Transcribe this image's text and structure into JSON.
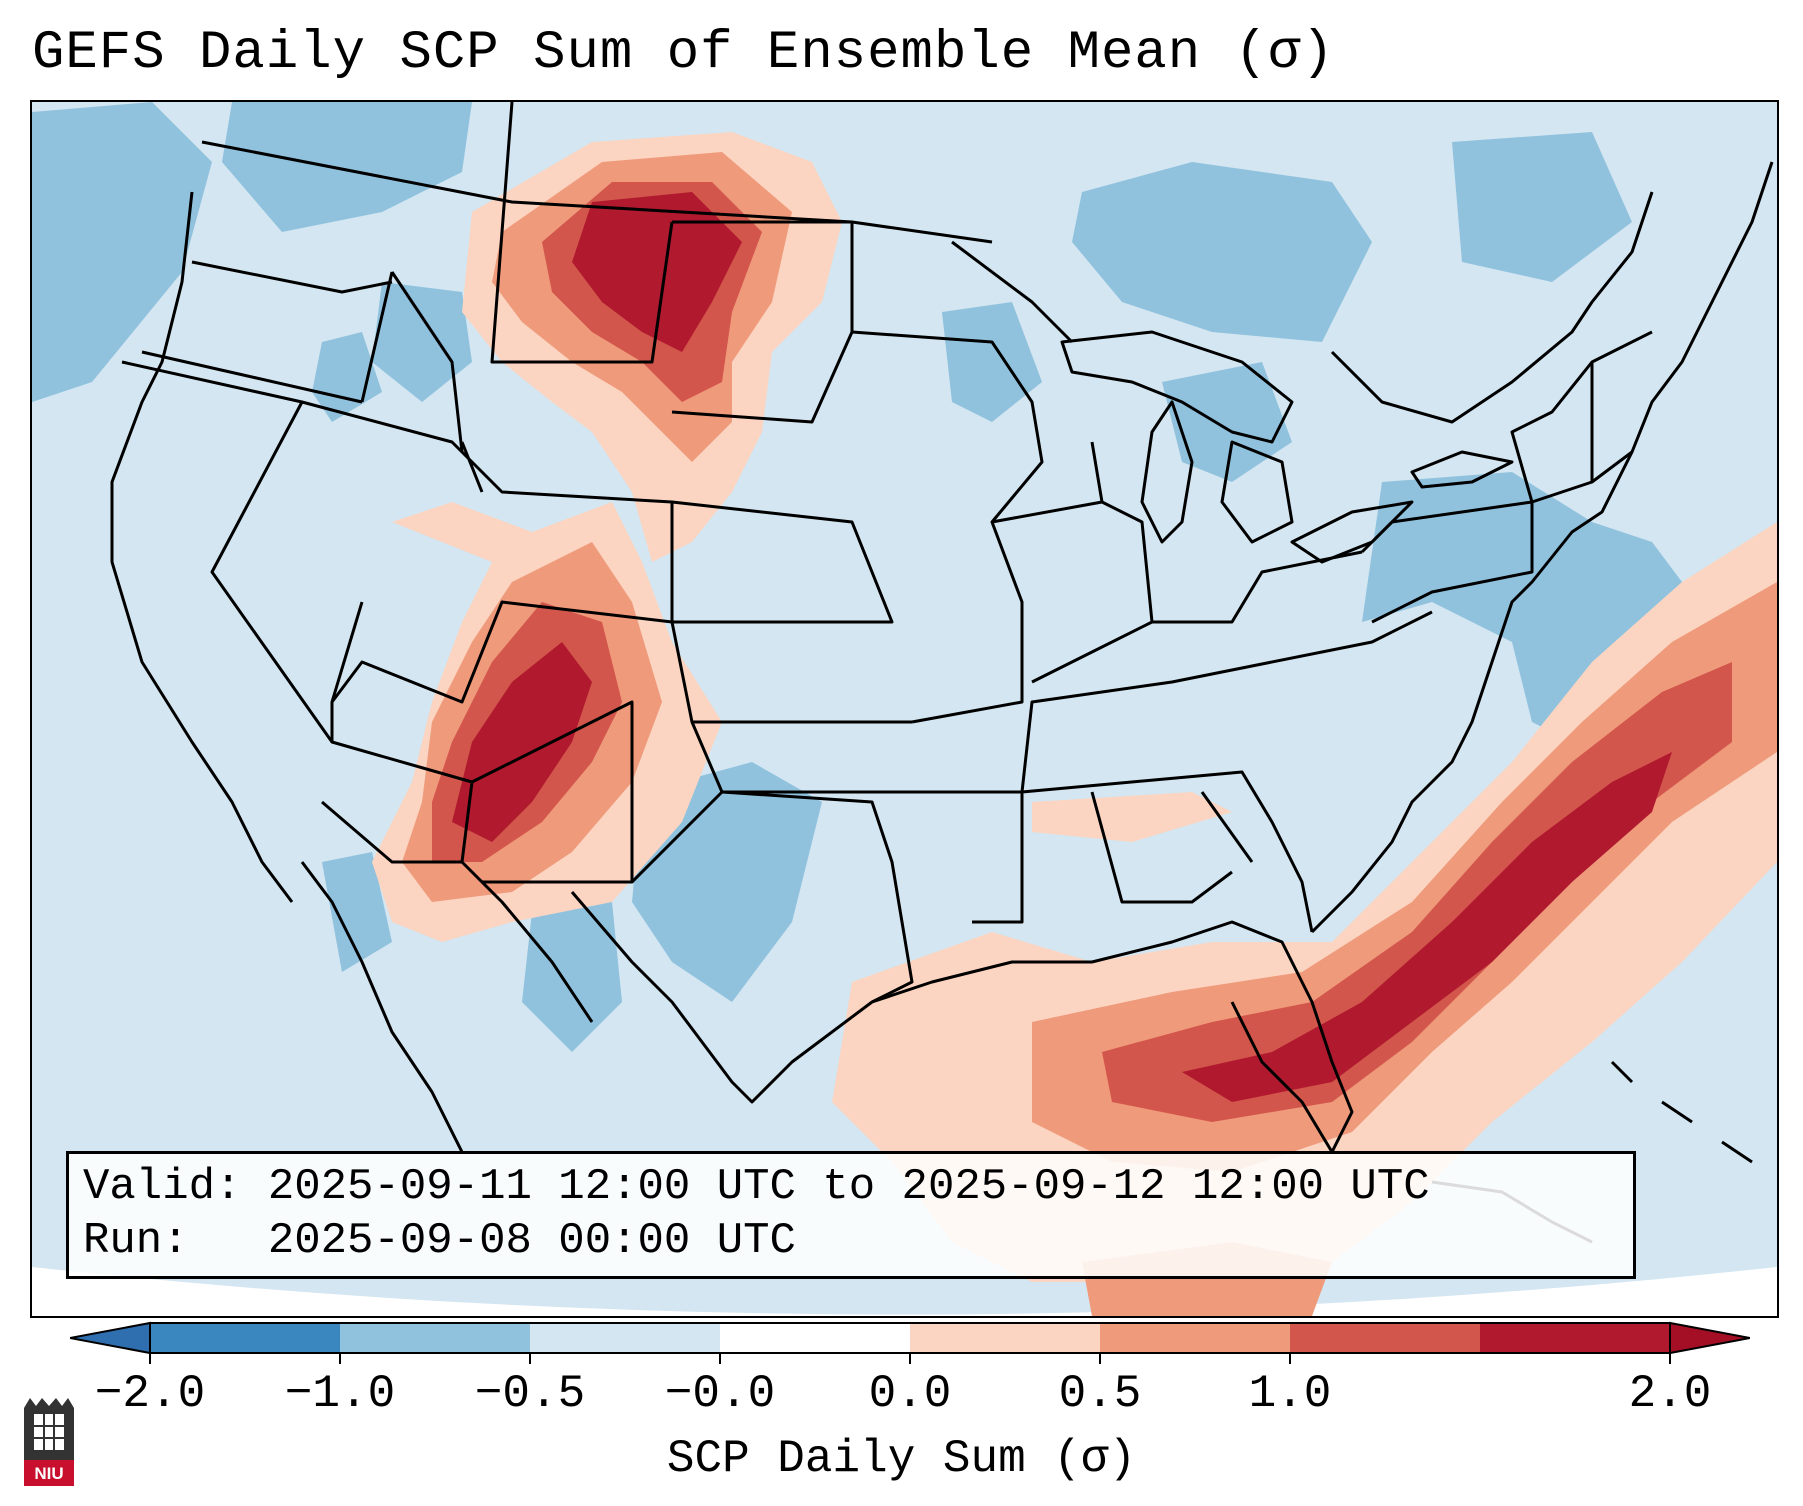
{
  "title": "GEFS Daily SCP Sum of Ensemble Mean (σ)",
  "valid_label": "Valid:",
  "valid_value": "2025-09-11 12:00 UTC to 2025-09-12 12:00 UTC",
  "run_label": "Run:",
  "run_value": "2025-09-08 00:00 UTC",
  "colorbar": {
    "label": "SCP Daily Sum (σ)",
    "ticks": [
      "−2.0",
      "−1.0",
      "−0.5",
      "−0.0",
      "0.0",
      "0.5",
      "1.0",
      "2.0"
    ],
    "bins": [
      "#3a87bf",
      "#90c2de",
      "#d3e6f1",
      "#ffffff",
      "#fbd5c1",
      "#f09a7c",
      "#d2564b",
      "#b0192e"
    ],
    "extend_low_color": "#2f6fb0",
    "extend_high_color": "#a50f26"
  },
  "colors": {
    "background": "#d3e6f1",
    "lt_neg": "#90c2de",
    "lt_pos": "#fbd5c1",
    "mid_pos": "#f09a7c",
    "hi_pos": "#d2564b",
    "max_pos": "#b0192e",
    "outside": "#ffffff"
  },
  "logo": {
    "text": "NIU",
    "color": "#c8102e"
  }
}
